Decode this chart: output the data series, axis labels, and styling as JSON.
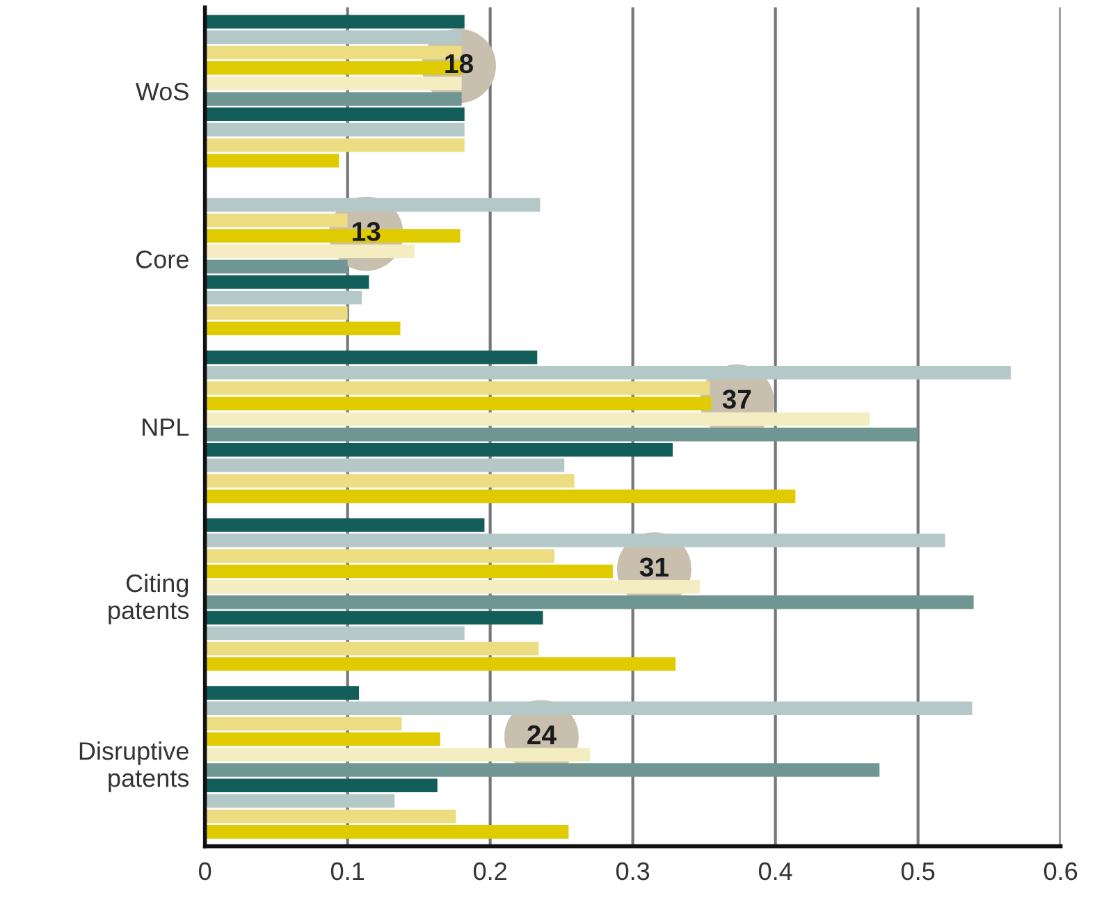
{
  "chart_data": {
    "type": "bar",
    "orientation": "horizontal",
    "categories": [
      "WoS",
      "Core",
      "NPL",
      "Citing\npatents",
      "Disruptive\npatents"
    ],
    "series": [
      {
        "color": "#135e5a",
        "values": [
          0.182,
          null,
          0.233,
          0.196,
          0.108
        ]
      },
      {
        "color": "#b5c8c8",
        "values": [
          0.18,
          0.235,
          0.565,
          0.519,
          0.538
        ]
      },
      {
        "color": "#ecdc82",
        "values": [
          0.18,
          0.1,
          0.354,
          0.245,
          0.138
        ]
      },
      {
        "color": "#dfcb00",
        "values": [
          0.18,
          0.179,
          0.355,
          0.286,
          0.165
        ]
      },
      {
        "color": "#f5edc2",
        "values": [
          0.18,
          0.147,
          0.466,
          0.347,
          0.27
        ]
      },
      {
        "color": "#6f9693",
        "values": [
          0.18,
          0.1,
          0.5,
          0.539,
          0.473
        ]
      },
      {
        "color": "#135e5a",
        "values": [
          0.182,
          0.115,
          0.328,
          0.237,
          0.163
        ]
      },
      {
        "color": "#b5c8c8",
        "values": [
          0.182,
          0.11,
          0.252,
          0.182,
          0.133
        ]
      },
      {
        "color": "#ecdc82",
        "values": [
          0.182,
          0.1,
          0.259,
          0.234,
          0.176
        ]
      },
      {
        "color": "#dfcb00",
        "values": [
          0.094,
          0.137,
          0.414,
          0.33,
          0.255
        ]
      }
    ],
    "xlim": [
      0,
      0.6
    ],
    "xticks": [
      0,
      0.1,
      0.2,
      0.3,
      0.4,
      0.5,
      0.6
    ],
    "grid": "x",
    "annotations": [
      {
        "text": "18",
        "x": 0.178,
        "y": "WoS"
      },
      {
        "text": "13",
        "x": 0.113,
        "y": "Core"
      },
      {
        "text": "37",
        "x": 0.373,
        "y": "NPL"
      },
      {
        "text": "31",
        "x": 0.315,
        "y": "Citing\npatents"
      },
      {
        "text": "24",
        "x": 0.236,
        "y": "Disruptive\npatents"
      }
    ]
  }
}
